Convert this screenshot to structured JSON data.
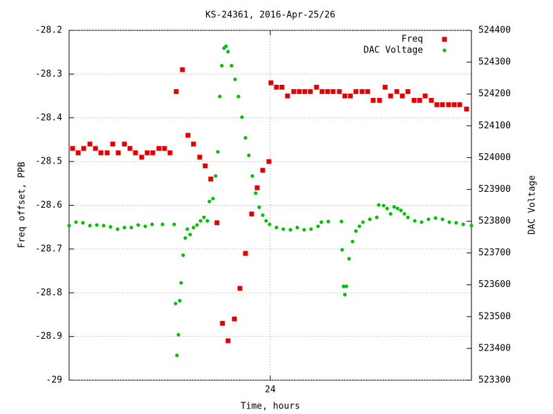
{
  "chart_data": {
    "type": "scatter",
    "title": "KS-24361, 2016-Apr-25/26",
    "x_label": "Time, hours",
    "y_label": "Freq offset, PPB",
    "y2_label": "DAC Voltage",
    "xlim": [
      12,
      36
    ],
    "xticks": [
      24
    ],
    "ylim": [
      -29,
      -28.2
    ],
    "yticks": [
      -29,
      -28.9,
      -28.8,
      -28.7,
      -28.6,
      -28.5,
      -28.4,
      -28.3,
      -28.2
    ],
    "y2lim": [
      523300,
      524400
    ],
    "y2ticks": [
      523300,
      523400,
      523500,
      523600,
      523700,
      523800,
      523900,
      524000,
      524100,
      524200,
      524300,
      524400
    ],
    "grid": true,
    "legend": "top-right",
    "series": [
      {
        "name": "Freq",
        "color": "#e00000",
        "marker": "square",
        "x": [
          12.21,
          12.54,
          12.87,
          13.24,
          13.57,
          13.9,
          14.27,
          14.6,
          14.93,
          15.3,
          15.63,
          15.96,
          16.33,
          16.66,
          16.99,
          17.36,
          17.69,
          18.02,
          18.39,
          18.76,
          19.09,
          19.42,
          19.79,
          20.12,
          20.45,
          20.82,
          21.15,
          21.48,
          21.86,
          22.19,
          22.52,
          22.89,
          23.22,
          23.55,
          23.92,
          24.04,
          24.37,
          24.7,
          25.03,
          25.4,
          25.73,
          26.06,
          26.39,
          26.76,
          27.09,
          27.42,
          27.75,
          28.12,
          28.45,
          28.78,
          29.11,
          29.48,
          29.81,
          30.14,
          30.52,
          30.85,
          31.18,
          31.55,
          31.88,
          32.21,
          32.58,
          32.91,
          33.24,
          33.61,
          33.94,
          34.27,
          34.64,
          34.97,
          35.3,
          35.71
        ],
        "values": [
          -28.47,
          -28.48,
          -28.47,
          -28.46,
          -28.47,
          -28.48,
          -28.48,
          -28.46,
          -28.48,
          -28.46,
          -28.47,
          -28.48,
          -28.49,
          -28.48,
          -28.48,
          -28.47,
          -28.47,
          -28.48,
          -28.34,
          -28.29,
          -28.44,
          -28.46,
          -28.49,
          -28.51,
          -28.54,
          -28.64,
          -28.87,
          -28.91,
          -28.86,
          -28.79,
          -28.71,
          -28.62,
          -28.56,
          -28.52,
          -28.5,
          -28.32,
          -28.33,
          -28.33,
          -28.35,
          -28.34,
          -28.34,
          -28.34,
          -28.34,
          -28.33,
          -28.34,
          -28.34,
          -28.34,
          -28.34,
          -28.35,
          -28.35,
          -28.34,
          -28.34,
          -28.34,
          -28.36,
          -28.36,
          -28.33,
          -28.35,
          -28.34,
          -28.35,
          -28.34,
          -28.36,
          -28.36,
          -28.35,
          -28.36,
          -28.37,
          -28.37,
          -28.37,
          -28.37,
          -28.37,
          -28.38
        ]
      },
      {
        "name": "DAC Voltage",
        "color": "#00c000",
        "marker": "star",
        "axis": "y2",
        "x": [
          12,
          12.41,
          12.82,
          13.24,
          13.65,
          14.06,
          14.47,
          14.89,
          15.3,
          15.71,
          16.12,
          16.54,
          16.95,
          17.57,
          18.27,
          18.35,
          18.43,
          18.52,
          18.6,
          18.68,
          18.8,
          18.93,
          19.05,
          19.22,
          19.42,
          19.63,
          19.84,
          20.04,
          20.25,
          20.37,
          20.58,
          20.74,
          20.87,
          20.99,
          21.11,
          21.24,
          21.36,
          21.48,
          21.69,
          21.9,
          22.1,
          22.31,
          22.52,
          22.72,
          22.93,
          23.13,
          23.34,
          23.55,
          23.75,
          23.96,
          24.37,
          24.78,
          25.2,
          25.61,
          26.02,
          26.43,
          26.85,
          27.05,
          27.46,
          28.25,
          28.29,
          28.37,
          28.45,
          28.54,
          28.7,
          28.91,
          29.11,
          29.32,
          29.53,
          29.94,
          30.35,
          30.47,
          30.76,
          30.97,
          31.18,
          31.39,
          31.59,
          31.79,
          32.0,
          32.21,
          32.62,
          33.03,
          33.44,
          33.86,
          34.27,
          34.68,
          35.09,
          35.51,
          36
        ],
        "values": [
          523786,
          523797,
          523795,
          523786,
          523788,
          523786,
          523782,
          523775,
          523780,
          523780,
          523788,
          523784,
          523790,
          523790,
          523790,
          523541,
          523378,
          523443,
          523550,
          523606,
          523693,
          523747,
          523775,
          523758,
          523780,
          523788,
          523801,
          523812,
          523801,
          523862,
          523871,
          523942,
          524018,
          524192,
          524289,
          524344,
          524350,
          524333,
          524289,
          524246,
          524192,
          524127,
          524062,
          524007,
          523942,
          523888,
          523844,
          523819,
          523801,
          523790,
          523780,
          523775,
          523773,
          523780,
          523773,
          523775,
          523784,
          523797,
          523799,
          523799,
          523710,
          523595,
          523569,
          523595,
          523682,
          523736,
          523769,
          523784,
          523797,
          523806,
          523812,
          523851,
          523849,
          523840,
          523823,
          523845,
          523840,
          523834,
          523823,
          523812,
          523801,
          523797,
          523806,
          523810,
          523806,
          523797,
          523795,
          523790,
          523786
        ]
      }
    ]
  }
}
